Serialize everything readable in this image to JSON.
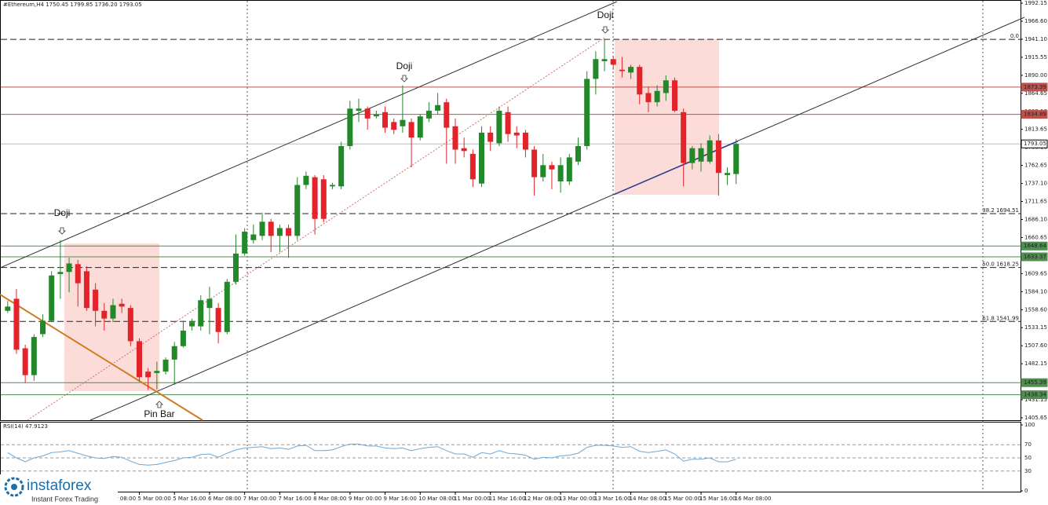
{
  "header": "#Ethereum,H4  1750.45 1799.85 1736.20 1793.05",
  "chart_data": {
    "type": "candlestick",
    "open": [
      1557,
      1574,
      1504,
      1466,
      1524,
      1543,
      1609,
      1612,
      1623,
      1613,
      1587,
      1557,
      1546,
      1567,
      1561,
      1514,
      1471,
      1469,
      1471,
      1488,
      1507,
      1535,
      1535,
      1561,
      1561,
      1527,
      1598,
      1638,
      1657,
      1663,
      1683,
      1663,
      1674,
      1663,
      1735,
      1746,
      1743,
      1733,
      1733,
      1790,
      1840,
      1843,
      1832,
      1838,
      1824,
      1818,
      1824,
      1802,
      1829,
      1840,
      1852,
      1818,
      1787,
      1779,
      1737,
      1809,
      1794,
      1838,
      1809,
      1809,
      1785,
      1746,
      1763,
      1740,
      1740,
      1768,
      1790,
      1885,
      1910,
      1913,
      1898,
      1894,
      1902,
      1865,
      1852,
      1865,
      1883,
      1838,
      1766,
      1768,
      1768,
      1798,
      1749,
      1750.45
    ],
    "high": [
      1571,
      1588,
      1509,
      1524,
      1552,
      1613,
      1657,
      1632,
      1629,
      1620,
      1596,
      1568,
      1574,
      1574,
      1565,
      1518,
      1476,
      1485,
      1491,
      1513,
      1543,
      1546,
      1579,
      1591,
      1568,
      1602,
      1665,
      1674,
      1679,
      1696,
      1687,
      1679,
      1679,
      1746,
      1754,
      1749,
      1749,
      1738,
      1796,
      1854,
      1857,
      1846,
      1840,
      1846,
      1829,
      1876,
      1829,
      1835,
      1852,
      1865,
      1857,
      1829,
      1802,
      1785,
      1818,
      1818,
      1846,
      1846,
      1818,
      1813,
      1790,
      1779,
      1768,
      1774,
      1779,
      1802,
      1896,
      1924,
      1940,
      1918,
      1916,
      1905,
      1905,
      1874,
      1876,
      1890,
      1887,
      1843,
      1790,
      1794,
      1805,
      1807,
      1760,
      1799.85
    ],
    "low": [
      1554,
      1496,
      1455,
      1458,
      1520,
      1541,
      1574,
      1583,
      1563,
      1557,
      1535,
      1529,
      1541,
      1554,
      1507,
      1457,
      1445,
      1446,
      1467,
      1452,
      1505,
      1529,
      1529,
      1524,
      1511,
      1524,
      1594,
      1635,
      1652,
      1657,
      1640,
      1640,
      1632,
      1657,
      1729,
      1665,
      1682,
      1729,
      1729,
      1785,
      1824,
      1813,
      1829,
      1809,
      1807,
      1809,
      1760,
      1798,
      1824,
      1835,
      1765,
      1765,
      1774,
      1732,
      1732,
      1783,
      1790,
      1796,
      1787,
      1774,
      1720,
      1740,
      1729,
      1724,
      1735,
      1763,
      1785,
      1863,
      1896,
      1898,
      1887,
      1885,
      1849,
      1838,
      1846,
      1854,
      1838,
      1733,
      1757,
      1754,
      1765,
      1720,
      1735,
      1736.2
    ],
    "close": [
      1563,
      1502,
      1466,
      1520,
      1543,
      1607,
      1612,
      1624,
      1596,
      1561,
      1557,
      1546,
      1565,
      1563,
      1514,
      1463,
      1463,
      1472,
      1488,
      1507,
      1529,
      1541,
      1572,
      1574,
      1527,
      1598,
      1638,
      1669,
      1665,
      1683,
      1663,
      1674,
      1663,
      1735,
      1748,
      1687,
      1687,
      1735,
      1790,
      1843,
      1843,
      1829,
      1835,
      1816,
      1813,
      1827,
      1802,
      1832,
      1840,
      1848,
      1816,
      1785,
      1783,
      1743,
      1809,
      1796,
      1840,
      1807,
      1805,
      1785,
      1746,
      1763,
      1757,
      1763,
      1774,
      1790,
      1885,
      1913,
      1913,
      1905,
      1896,
      1902,
      1863,
      1852,
      1868,
      1883,
      1840,
      1766,
      1787,
      1787,
      1798,
      1752,
      1752,
      1793.05
    ],
    "up_color": "#23882a",
    "down_color": "#e3222a",
    "ylim": [
      1405.65,
      1992.15
    ],
    "yticks": [
      1992.15,
      {
        "value": 1966.6,
        "label": "1966.60"
      },
      {
        "value": 1941.1,
        "label": "1941.10"
      },
      1915.55,
      {
        "value": 1890,
        "label": "1890.00"
      },
      1864.65,
      {
        "value": 1839.1,
        "label": "1839.10"
      },
      1813.65,
      {
        "value": 1788.1,
        "label": "1788.10"
      },
      1762.65,
      {
        "value": 1737.1,
        "label": "1737.10"
      },
      1711.65,
      {
        "value": 1686.1,
        "label": "1686.10"
      },
      1660.65,
      {
        "value": 1635.1,
        "label": "1635.10"
      },
      1609.65,
      {
        "value": 1584.1,
        "label": "1584.10"
      },
      {
        "value": 1558.6,
        "label": "1558.60"
      },
      1533.15,
      {
        "value": 1507.6,
        "label": "1507.60"
      },
      1482.15,
      {
        "value": 1456.6,
        "label": "1456.60"
      },
      1431.15,
      1405.65
    ],
    "xticks": [
      {
        "value": 11,
        "label": "4 Mar 08:00"
      },
      {
        "value": 15,
        "label": "5 Mar 00:00"
      },
      {
        "value": 19,
        "label": "5 Mar 16:00"
      },
      {
        "value": 23,
        "label": "6 Mar 08:00"
      },
      {
        "value": 27,
        "label": "7 Mar 00:00"
      },
      {
        "value": 31,
        "label": "7 Mar 16:00"
      },
      {
        "value": 35,
        "label": "8 Mar 08:00"
      },
      {
        "value": 39,
        "label": "9 Mar 00:00"
      },
      {
        "value": 43,
        "label": "9 Mar 16:00"
      },
      {
        "value": 47,
        "label": "10 Mar 08:00"
      },
      {
        "value": 51,
        "label": "11 Mar 00:00"
      },
      {
        "value": 55,
        "label": "11 Mar 16:00"
      },
      {
        "value": 59,
        "label": "12 Mar 08:00"
      },
      {
        "value": 63,
        "label": "13 Mar 00:00"
      },
      {
        "value": 67,
        "label": "13 Mar 16:00"
      },
      {
        "value": 71,
        "label": "14 Mar 08:00"
      },
      {
        "value": 75,
        "label": "15 Mar 00:00"
      },
      {
        "value": 79,
        "label": "15 Mar 16:00"
      },
      {
        "value": 83,
        "label": "16 Mar 08:00"
      }
    ],
    "levels": [
      {
        "value": 1940.9,
        "label": "0.0",
        "kind": "fib",
        "color": "#222222"
      },
      {
        "value": 1873.39,
        "label": "1873.39",
        "kind": "tag",
        "color": "#c0504d"
      },
      {
        "value": 1834.89,
        "label": "1834.89",
        "kind": "tag",
        "color": "#c0504d"
      },
      {
        "value": 1793.05,
        "label": "1793.05",
        "kind": "price",
        "color": "#bbbbbb"
      },
      {
        "value": 1694.51,
        "label": "38.2 1694.51",
        "kind": "fib",
        "color": "#222222"
      },
      {
        "value": 1648.64,
        "label": "1648.64",
        "kind": "tag",
        "color": "#4e8f4e"
      },
      {
        "value": 1633.37,
        "label": "1633.37",
        "kind": "tag",
        "color": "#4e8f4e"
      },
      {
        "value": 1618.25,
        "label": "50.0 1618.25",
        "kind": "fib",
        "color": "#222222"
      },
      {
        "value": 1541.99,
        "label": "61.8 1541.99",
        "kind": "fib",
        "color": "#222222"
      },
      {
        "value": 1455.39,
        "label": "1455.39",
        "kind": "tag",
        "color": "#4e8f4e"
      },
      {
        "value": 1438.34,
        "label": "1438.34",
        "kind": "tag",
        "color": "#4e8f4e"
      }
    ],
    "annotations": [
      "Doji",
      "Doji",
      "Doji",
      "Pin Bar"
    ],
    "rsi": {
      "title": "RSI(14) 47.9123",
      "color": "#6fa8d6",
      "ylim": [
        0,
        100
      ],
      "yticks": [
        100,
        70,
        50,
        30,
        0
      ],
      "values": [
        58,
        50,
        44,
        50,
        53,
        58,
        59,
        61,
        57,
        53,
        50,
        49,
        52,
        51,
        45,
        40,
        39,
        40,
        43,
        46,
        50,
        51,
        55,
        56,
        51,
        57,
        62,
        65,
        66,
        67,
        64,
        65,
        63,
        68,
        69,
        61,
        61,
        62,
        67,
        71,
        71,
        68,
        68,
        65,
        64,
        65,
        61,
        64,
        66,
        67,
        61,
        56,
        56,
        51,
        58,
        56,
        61,
        57,
        56,
        54,
        48,
        51,
        50,
        53,
        54,
        57,
        66,
        69,
        69,
        68,
        66,
        67,
        60,
        58,
        60,
        62,
        56,
        45,
        48,
        48,
        50,
        44,
        44,
        47.9123
      ]
    }
  },
  "watermark": {
    "brand": "instaforex",
    "tagline": "Instant Forex Trading"
  }
}
